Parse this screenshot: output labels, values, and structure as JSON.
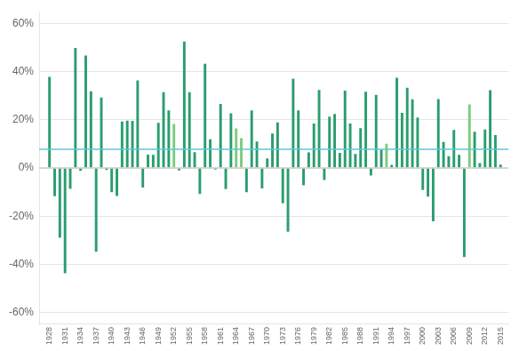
{
  "chart_data": {
    "type": "bar",
    "x": [
      1928,
      1929,
      1930,
      1931,
      1932,
      1933,
      1934,
      1935,
      1936,
      1937,
      1938,
      1939,
      1940,
      1941,
      1942,
      1943,
      1944,
      1945,
      1946,
      1947,
      1948,
      1949,
      1950,
      1951,
      1952,
      1953,
      1954,
      1955,
      1956,
      1957,
      1958,
      1959,
      1960,
      1961,
      1962,
      1963,
      1964,
      1965,
      1966,
      1967,
      1968,
      1969,
      1970,
      1971,
      1972,
      1973,
      1974,
      1975,
      1976,
      1977,
      1978,
      1979,
      1980,
      1981,
      1982,
      1983,
      1984,
      1985,
      1986,
      1987,
      1988,
      1989,
      1990,
      1991,
      1992,
      1993,
      1994,
      1995,
      1996,
      1997,
      1998,
      1999,
      2000,
      2001,
      2002,
      2003,
      2004,
      2005,
      2006,
      2007,
      2008,
      2009,
      2010,
      2011,
      2012,
      2013,
      2014,
      2015
    ],
    "values": [
      0.3788,
      -0.1169,
      -0.2895,
      -0.438,
      -0.0864,
      0.4996,
      -0.0119,
      0.4674,
      0.3192,
      -0.3483,
      0.2928,
      -0.0078,
      -0.1007,
      -0.1159,
      0.1934,
      0.1975,
      0.1961,
      0.3644,
      -0.0807,
      0.0557,
      0.0548,
      0.1879,
      0.3158,
      0.2396,
      0.1837,
      -0.0099,
      0.5262,
      0.3156,
      0.0656,
      -0.1078,
      0.4336,
      0.1196,
      -0.0061,
      0.2664,
      -0.0873,
      0.228,
      0.1648,
      0.1245,
      -0.1006,
      0.2398,
      0.1106,
      -0.085,
      0.0401,
      0.1431,
      0.1898,
      -0.1466,
      -0.2647,
      0.372,
      0.2393,
      -0.0718,
      0.0651,
      0.1851,
      0.3242,
      -0.0491,
      0.2141,
      0.2251,
      0.0627,
      0.3216,
      0.1847,
      0.0581,
      0.1654,
      0.3169,
      -0.031,
      0.3047,
      0.0762,
      0.1008,
      0.0132,
      0.3758,
      0.2296,
      0.3336,
      0.2858,
      0.2104,
      -0.091,
      -0.1189,
      -0.221,
      0.2868,
      0.1088,
      0.0491,
      0.1579,
      0.0549,
      -0.37,
      0.2646,
      0.1506,
      0.0211,
      0.16,
      0.3239,
      0.1369,
      0.0138
    ],
    "colors": [
      "#2a9d6e",
      "#2a9d6e",
      "#2a9d6e",
      "#2a9d6e",
      "#2a9d6e",
      "#2a9d6e",
      "#2a9d6e",
      "#2a9d6e",
      "#2a9d6e",
      "#2a9d6e",
      "#2a9d6e",
      "#2a9d6e",
      "#2a9d6e",
      "#2a9d6e",
      "#2a9d6e",
      "#2a9d6e",
      "#2a9d6e",
      "#2a9d6e",
      "#2a9d6e",
      "#2a9d6e",
      "#2a9d6e",
      "#2a9d6e",
      "#2a9d6e",
      "#2a9d6e",
      "#7dcc7d",
      "#2a9d6e",
      "#2a9d6e",
      "#2a9d6e",
      "#2a9d6e",
      "#2a9d6e",
      "#2a9d6e",
      "#2a9d6e",
      "#2a9d6e",
      "#2a9d6e",
      "#2a9d6e",
      "#2a9d6e",
      "#7dcc7d",
      "#7dcc7d",
      "#2a9d6e",
      "#2a9d6e",
      "#2a9d6e",
      "#2a9d6e",
      "#2a9d6e",
      "#2a9d6e",
      "#2a9d6e",
      "#2a9d6e",
      "#2a9d6e",
      "#2a9d6e",
      "#2a9d6e",
      "#2a9d6e",
      "#2a9d6e",
      "#2a9d6e",
      "#2a9d6e",
      "#2a9d6e",
      "#2a9d6e",
      "#2a9d6e",
      "#2a9d6e",
      "#2a9d6e",
      "#2a9d6e",
      "#2a9d6e",
      "#2a9d6e",
      "#2a9d6e",
      "#2a9d6e",
      "#2a9d6e",
      "#2a9d6e",
      "#7dcc7d",
      "#2a9d6e",
      "#2a9d6e",
      "#2a9d6e",
      "#2a9d6e",
      "#2a9d6e",
      "#2a9d6e",
      "#2a9d6e",
      "#2a9d6e",
      "#2a9d6e",
      "#2a9d6e",
      "#2a9d6e",
      "#2a9d6e",
      "#2a9d6e",
      "#2a9d6e",
      "#2a9d6e",
      "#7dcc7d",
      "#2a9d6e",
      "#2a9d6e",
      "#2a9d6e",
      "#2a9d6e",
      "#2a9d6e",
      "#2a9d6e"
    ],
    "hlines": [
      {
        "value": 0.0783,
        "color": "#5bc8d8"
      },
      {
        "value": 0,
        "color": "#cccccc"
      }
    ],
    "xlim": [
      1926,
      2016.5
    ],
    "xticks": [
      1928,
      1931,
      1934,
      1937,
      1940,
      1943,
      1946,
      1949,
      1952,
      1955,
      1958,
      1961,
      1964,
      1967,
      1970,
      1973,
      1976,
      1979,
      1982,
      1985,
      1988,
      1991,
      1994,
      1997,
      2000,
      2003,
      2006,
      2009,
      2012,
      2015
    ],
    "ylim": [
      -0.65,
      0.65
    ],
    "yticks": [
      {
        "value": -0.6,
        "label": "-60%"
      },
      {
        "value": -0.4,
        "label": "-40%"
      },
      {
        "value": -0.2,
        "label": "-20%"
      },
      {
        "value": 0.0,
        "label": "0%"
      },
      {
        "value": 0.2,
        "label": "20%"
      },
      {
        "value": 0.4,
        "label": "40%"
      },
      {
        "value": 0.6,
        "label": "60%"
      }
    ],
    "grid": true
  }
}
